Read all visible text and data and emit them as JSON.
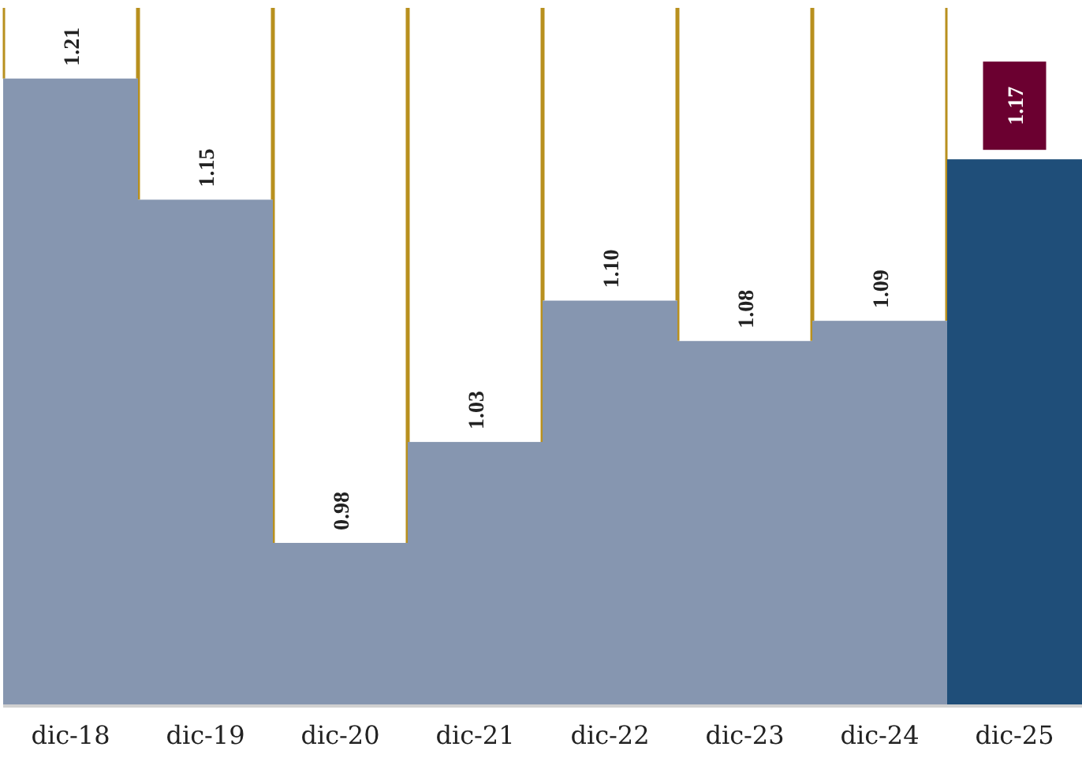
{
  "chart_data": {
    "type": "bar",
    "categories": [
      "dic-18",
      "dic-19",
      "dic-20",
      "dic-21",
      "dic-22",
      "dic-23",
      "dic-24",
      "dic-25"
    ],
    "values": [
      1.21,
      1.15,
      0.98,
      1.03,
      1.1,
      1.08,
      1.09,
      1.17
    ],
    "colors": [
      "#8696b0",
      "#8696b0",
      "#8696b0",
      "#8696b0",
      "#8696b0",
      "#8696b0",
      "#8696b0",
      "#1f4e79"
    ],
    "value_labels": [
      "1.21",
      "1.15",
      "0.98",
      "1.03",
      "1.10",
      "1.08",
      "1.09",
      "1.17"
    ],
    "ylim": [
      0.9,
      1.245
    ],
    "tick_labels": "x"
  }
}
